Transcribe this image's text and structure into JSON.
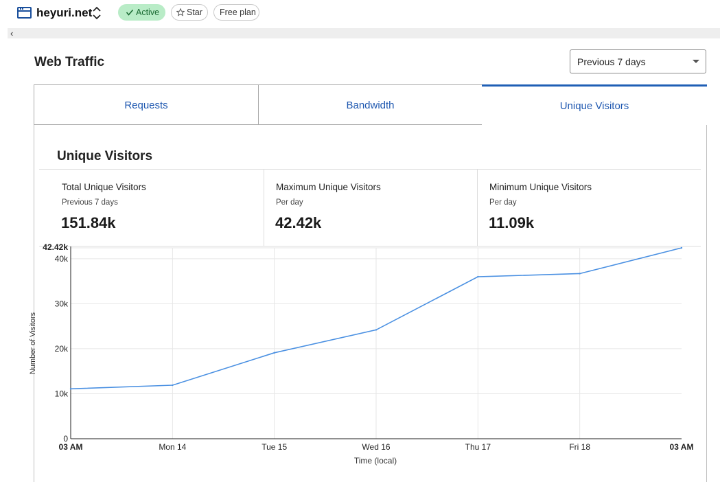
{
  "site": {
    "name": "heyuri.net",
    "icon": "browser-window-icon",
    "switch_icon": "chevron-up-down-icon"
  },
  "badges": {
    "active": "Active",
    "star": "Star",
    "plan": "Free plan"
  },
  "colors": {
    "accent": "#1f5fb5",
    "active_bg": "#b9ecc7",
    "line": "#4a90e2"
  },
  "header": {
    "title": "Web Traffic",
    "range": "Previous 7 days"
  },
  "tabs": [
    {
      "label": "Requests",
      "selected": false
    },
    {
      "label": "Bandwidth",
      "selected": false
    },
    {
      "label": "Unique Visitors",
      "selected": true
    }
  ],
  "section": {
    "title": "Unique Visitors"
  },
  "stats": [
    {
      "label": "Total Unique Visitors",
      "sub": "Previous 7 days",
      "value": "151.84k"
    },
    {
      "label": "Maximum Unique Visitors",
      "sub": "Per day",
      "value": "42.42k"
    },
    {
      "label": "Minimum Unique Visitors",
      "sub": "Per day",
      "value": "11.09k"
    }
  ],
  "chart_data": {
    "type": "line",
    "xlabel": "Time (local)",
    "ylabel": "Number of Visitors",
    "ylim": [
      0,
      42420
    ],
    "x_ticks": [
      "03 AM",
      "Mon 14",
      "Tue 15",
      "Wed 16",
      "Thu 17",
      "Fri 18",
      "03 AM"
    ],
    "y_ticks": [
      "0",
      "10k",
      "20k",
      "30k",
      "40k"
    ],
    "y_max_label": "42.42k",
    "grid": true,
    "x": [
      0,
      1,
      2,
      3,
      4,
      5,
      6
    ],
    "series": [
      {
        "values": [
          11090,
          11900,
          19100,
          24200,
          36000,
          36700,
          42420
        ]
      }
    ]
  }
}
